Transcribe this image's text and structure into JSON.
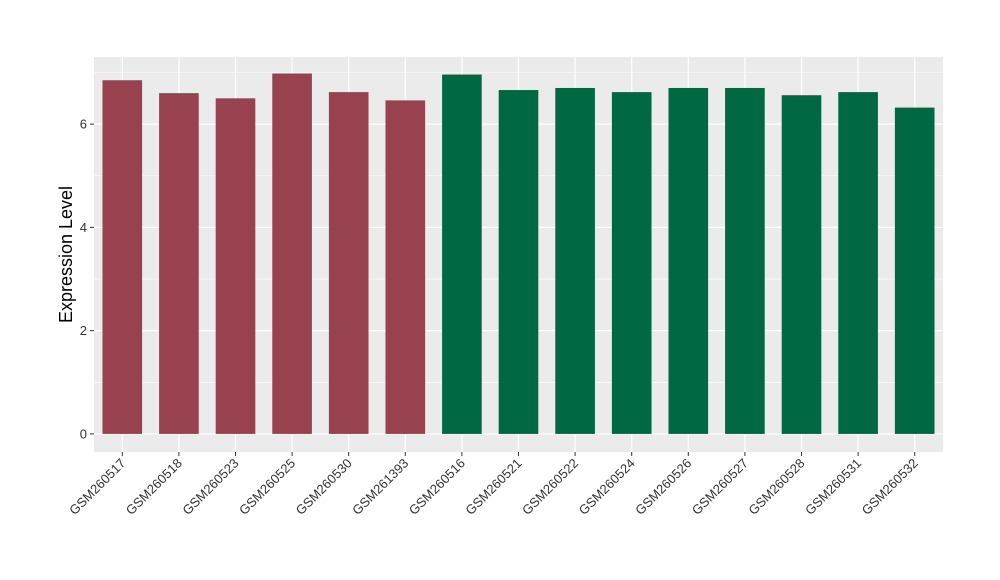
{
  "chart_data": {
    "type": "bar",
    "ylabel": "Expression Level",
    "xlabel": "",
    "ylim": [
      -0.35,
      7.3
    ],
    "yticks": [
      0,
      2,
      4,
      6
    ],
    "grid": true,
    "background": "#EBEBEB",
    "categories": [
      "GSM260517",
      "GSM260518",
      "GSM260523",
      "GSM260525",
      "GSM260530",
      "GSM261393",
      "GSM260516",
      "GSM260521",
      "GSM260522",
      "GSM260524",
      "GSM260526",
      "GSM260527",
      "GSM260528",
      "GSM260531",
      "GSM260532"
    ],
    "values": [
      6.85,
      6.6,
      6.5,
      6.98,
      6.62,
      6.46,
      6.96,
      6.66,
      6.7,
      6.62,
      6.7,
      6.7,
      6.56,
      6.62,
      6.32
    ],
    "groups": [
      0,
      0,
      0,
      0,
      0,
      0,
      1,
      1,
      1,
      1,
      1,
      1,
      1,
      1,
      1
    ],
    "colors": [
      "#99424F",
      "#006843"
    ]
  }
}
